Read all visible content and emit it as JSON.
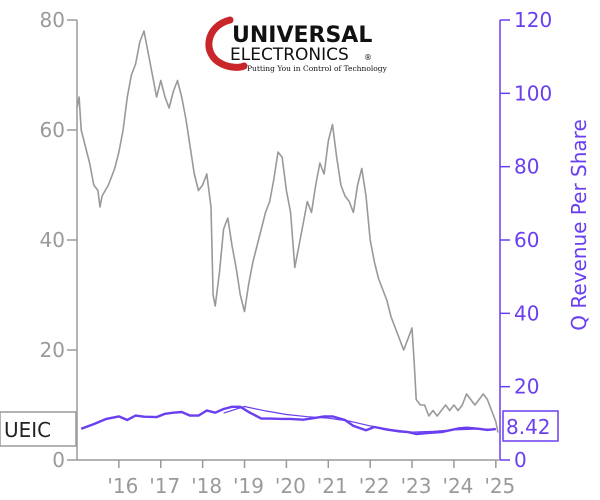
{
  "chart_data": {
    "type": "line",
    "ticker": "UEIC",
    "last_value_label": "8.42",
    "ylabel_right": "Q Revenue Per Share",
    "left_axis": {
      "ylim": [
        0,
        80
      ],
      "ticks": [
        0,
        20,
        40,
        60,
        80
      ],
      "color": "#9a9a9a"
    },
    "right_axis": {
      "ylim": [
        0,
        120
      ],
      "ticks": [
        0,
        20,
        40,
        60,
        80,
        100,
        120
      ],
      "color": "#6a3ff0"
    },
    "x_axis": {
      "tick_labels": [
        "'16",
        "'17",
        "'18",
        "'19",
        "'20",
        "'21",
        "'22",
        "'23",
        "'24",
        "'25"
      ],
      "tick_years": [
        2016,
        2017,
        2018,
        2019,
        2020,
        2021,
        2022,
        2023,
        2024,
        2025
      ],
      "range": [
        2015.0,
        2025.1
      ]
    },
    "grid": false,
    "logo": {
      "line1": "UNIVERSAL",
      "line2": "ELECTRONICS",
      "tagline": "Putting You in Control of Technology",
      "mark": "®"
    },
    "series": [
      {
        "role": "price",
        "color": "#999999",
        "points": [
          [
            2015.0,
            64
          ],
          [
            2015.05,
            66
          ],
          [
            2015.1,
            60
          ],
          [
            2015.2,
            57
          ],
          [
            2015.3,
            54
          ],
          [
            2015.4,
            50
          ],
          [
            2015.5,
            49
          ],
          [
            2015.55,
            46
          ],
          [
            2015.6,
            48
          ],
          [
            2015.75,
            50
          ],
          [
            2015.9,
            53
          ],
          [
            2016.0,
            56
          ],
          [
            2016.1,
            60
          ],
          [
            2016.2,
            66
          ],
          [
            2016.3,
            70
          ],
          [
            2016.4,
            72
          ],
          [
            2016.5,
            76
          ],
          [
            2016.6,
            78
          ],
          [
            2016.7,
            74
          ],
          [
            2016.8,
            70
          ],
          [
            2016.9,
            66
          ],
          [
            2017.0,
            69
          ],
          [
            2017.1,
            66
          ],
          [
            2017.2,
            64
          ],
          [
            2017.3,
            67
          ],
          [
            2017.4,
            69
          ],
          [
            2017.5,
            66
          ],
          [
            2017.6,
            62
          ],
          [
            2017.7,
            57
          ],
          [
            2017.8,
            52
          ],
          [
            2017.9,
            49
          ],
          [
            2018.0,
            50
          ],
          [
            2018.1,
            52
          ],
          [
            2018.2,
            46
          ],
          [
            2018.25,
            30
          ],
          [
            2018.3,
            28
          ],
          [
            2018.4,
            34
          ],
          [
            2018.5,
            42
          ],
          [
            2018.6,
            44
          ],
          [
            2018.7,
            39
          ],
          [
            2018.8,
            35
          ],
          [
            2018.9,
            30
          ],
          [
            2019.0,
            27
          ],
          [
            2019.1,
            32
          ],
          [
            2019.2,
            36
          ],
          [
            2019.3,
            39
          ],
          [
            2019.4,
            42
          ],
          [
            2019.5,
            45
          ],
          [
            2019.6,
            47
          ],
          [
            2019.7,
            51
          ],
          [
            2019.8,
            56
          ],
          [
            2019.9,
            55
          ],
          [
            2020.0,
            49
          ],
          [
            2020.1,
            45
          ],
          [
            2020.2,
            35
          ],
          [
            2020.3,
            39
          ],
          [
            2020.4,
            43
          ],
          [
            2020.5,
            47
          ],
          [
            2020.6,
            45
          ],
          [
            2020.7,
            50
          ],
          [
            2020.8,
            54
          ],
          [
            2020.9,
            52
          ],
          [
            2021.0,
            58
          ],
          [
            2021.1,
            61
          ],
          [
            2021.2,
            55
          ],
          [
            2021.3,
            50
          ],
          [
            2021.4,
            48
          ],
          [
            2021.5,
            47
          ],
          [
            2021.6,
            45
          ],
          [
            2021.7,
            50
          ],
          [
            2021.8,
            53
          ],
          [
            2021.9,
            48
          ],
          [
            2022.0,
            40
          ],
          [
            2022.1,
            36
          ],
          [
            2022.2,
            33
          ],
          [
            2022.3,
            31
          ],
          [
            2022.4,
            29
          ],
          [
            2022.5,
            26
          ],
          [
            2022.6,
            24
          ],
          [
            2022.7,
            22
          ],
          [
            2022.8,
            20
          ],
          [
            2022.9,
            22
          ],
          [
            2023.0,
            24
          ],
          [
            2023.05,
            18
          ],
          [
            2023.1,
            11
          ],
          [
            2023.2,
            10
          ],
          [
            2023.3,
            10
          ],
          [
            2023.4,
            8
          ],
          [
            2023.5,
            9
          ],
          [
            2023.6,
            8
          ],
          [
            2023.7,
            9
          ],
          [
            2023.8,
            10
          ],
          [
            2023.9,
            9
          ],
          [
            2024.0,
            10
          ],
          [
            2024.1,
            9
          ],
          [
            2024.2,
            10
          ],
          [
            2024.3,
            12
          ],
          [
            2024.4,
            11
          ],
          [
            2024.5,
            10
          ],
          [
            2024.6,
            11
          ],
          [
            2024.7,
            12
          ],
          [
            2024.8,
            11
          ],
          [
            2024.9,
            9
          ],
          [
            2025.0,
            7
          ],
          [
            2025.05,
            5
          ]
        ]
      },
      {
        "role": "q_revenue_per_share",
        "color": "#6a3ff0",
        "axis": "right",
        "points": [
          [
            2015.1,
            8.5
          ],
          [
            2015.4,
            9.8
          ],
          [
            2015.7,
            11.2
          ],
          [
            2016.0,
            11.9
          ],
          [
            2016.2,
            10.9
          ],
          [
            2016.4,
            12.1
          ],
          [
            2016.6,
            11.8
          ],
          [
            2016.9,
            11.7
          ],
          [
            2017.1,
            12.6
          ],
          [
            2017.3,
            12.9
          ],
          [
            2017.5,
            13.1
          ],
          [
            2017.7,
            12.1
          ],
          [
            2017.9,
            12.1
          ],
          [
            2018.1,
            13.5
          ],
          [
            2018.3,
            12.9
          ],
          [
            2018.5,
            13.9
          ],
          [
            2018.7,
            14.5
          ],
          [
            2018.9,
            14.5
          ],
          [
            2019.1,
            13.1
          ],
          [
            2019.4,
            11.3
          ],
          [
            2019.6,
            11.3
          ],
          [
            2019.9,
            11.2
          ],
          [
            2020.1,
            11.2
          ],
          [
            2020.4,
            11.0
          ],
          [
            2020.7,
            11.5
          ],
          [
            2020.9,
            11.9
          ],
          [
            2021.1,
            11.9
          ],
          [
            2021.4,
            10.9
          ],
          [
            2021.6,
            9.3
          ],
          [
            2021.9,
            8.1
          ],
          [
            2022.1,
            9.0
          ],
          [
            2022.4,
            8.3
          ],
          [
            2022.7,
            7.8
          ],
          [
            2022.9,
            7.6
          ],
          [
            2023.1,
            7.1
          ],
          [
            2023.4,
            7.4
          ],
          [
            2023.7,
            7.6
          ],
          [
            2023.9,
            8.1
          ],
          [
            2024.1,
            8.6
          ],
          [
            2024.3,
            8.8
          ],
          [
            2024.6,
            8.5
          ],
          [
            2024.8,
            8.2
          ],
          [
            2025.0,
            8.42
          ]
        ]
      },
      {
        "role": "q_revenue_per_share_trend",
        "color": "#6a3ff0",
        "axis": "right",
        "points": [
          [
            2018.5,
            12.8
          ],
          [
            2019.0,
            14.6
          ],
          [
            2019.5,
            13.4
          ],
          [
            2020.0,
            12.4
          ],
          [
            2020.5,
            11.8
          ],
          [
            2021.0,
            11.4
          ],
          [
            2021.5,
            10.6
          ],
          [
            2022.0,
            9.3
          ],
          [
            2022.5,
            8.3
          ],
          [
            2023.0,
            7.6
          ],
          [
            2023.5,
            7.8
          ],
          [
            2024.0,
            8.2
          ],
          [
            2024.5,
            8.4
          ],
          [
            2025.0,
            8.42
          ]
        ]
      }
    ]
  }
}
